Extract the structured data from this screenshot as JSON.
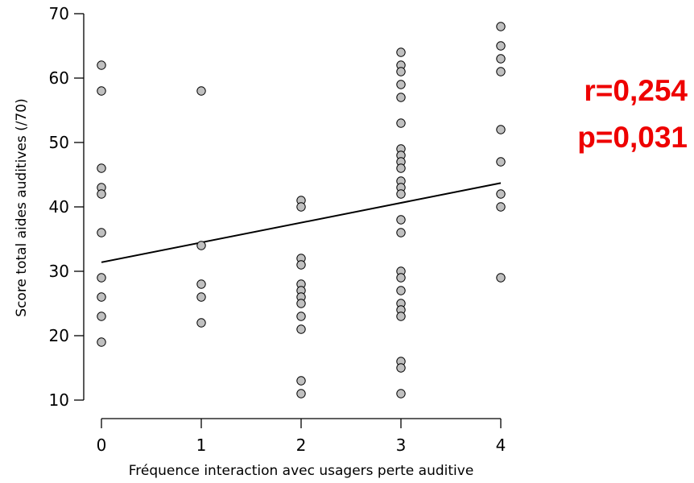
{
  "chart_data": {
    "type": "scatter",
    "xlabel": "Fréquence interaction avec usagers perte auditive",
    "ylabel": "Score total aides auditives (/70)",
    "xlim": [
      0,
      4
    ],
    "ylim": [
      10,
      70
    ],
    "x_ticks": [
      0,
      1,
      2,
      3,
      4
    ],
    "y_ticks": [
      10,
      20,
      30,
      40,
      50,
      60,
      70
    ],
    "grid": false,
    "points": [
      {
        "x": 0,
        "y": 62
      },
      {
        "x": 0,
        "y": 58
      },
      {
        "x": 0,
        "y": 46
      },
      {
        "x": 0,
        "y": 43
      },
      {
        "x": 0,
        "y": 42
      },
      {
        "x": 0,
        "y": 36
      },
      {
        "x": 0,
        "y": 29
      },
      {
        "x": 0,
        "y": 26
      },
      {
        "x": 0,
        "y": 23
      },
      {
        "x": 0,
        "y": 19
      },
      {
        "x": 1,
        "y": 58
      },
      {
        "x": 1,
        "y": 34
      },
      {
        "x": 1,
        "y": 28
      },
      {
        "x": 1,
        "y": 26
      },
      {
        "x": 1,
        "y": 22
      },
      {
        "x": 2,
        "y": 41
      },
      {
        "x": 2,
        "y": 40
      },
      {
        "x": 2,
        "y": 32
      },
      {
        "x": 2,
        "y": 31
      },
      {
        "x": 2,
        "y": 28
      },
      {
        "x": 2,
        "y": 27
      },
      {
        "x": 2,
        "y": 26
      },
      {
        "x": 2,
        "y": 25
      },
      {
        "x": 2,
        "y": 23
      },
      {
        "x": 2,
        "y": 21
      },
      {
        "x": 2,
        "y": 13
      },
      {
        "x": 2,
        "y": 11
      },
      {
        "x": 3,
        "y": 64
      },
      {
        "x": 3,
        "y": 62
      },
      {
        "x": 3,
        "y": 61
      },
      {
        "x": 3,
        "y": 59
      },
      {
        "x": 3,
        "y": 57
      },
      {
        "x": 3,
        "y": 53
      },
      {
        "x": 3,
        "y": 49
      },
      {
        "x": 3,
        "y": 48
      },
      {
        "x": 3,
        "y": 47
      },
      {
        "x": 3,
        "y": 46
      },
      {
        "x": 3,
        "y": 44
      },
      {
        "x": 3,
        "y": 43
      },
      {
        "x": 3,
        "y": 42
      },
      {
        "x": 3,
        "y": 38
      },
      {
        "x": 3,
        "y": 36
      },
      {
        "x": 3,
        "y": 30
      },
      {
        "x": 3,
        "y": 29
      },
      {
        "x": 3,
        "y": 27
      },
      {
        "x": 3,
        "y": 25
      },
      {
        "x": 3,
        "y": 24
      },
      {
        "x": 3,
        "y": 23
      },
      {
        "x": 3,
        "y": 16
      },
      {
        "x": 3,
        "y": 15
      },
      {
        "x": 3,
        "y": 11
      },
      {
        "x": 4,
        "y": 68
      },
      {
        "x": 4,
        "y": 65
      },
      {
        "x": 4,
        "y": 63
      },
      {
        "x": 4,
        "y": 61
      },
      {
        "x": 4,
        "y": 52
      },
      {
        "x": 4,
        "y": 47
      },
      {
        "x": 4,
        "y": 42
      },
      {
        "x": 4,
        "y": 40
      },
      {
        "x": 4,
        "y": 29
      }
    ],
    "regression_line": {
      "x": [
        0,
        4
      ],
      "y": [
        31.4,
        43.7
      ]
    },
    "point_fill": "#c0c0c0",
    "point_stroke": "#000000",
    "line_color": "#000000"
  },
  "annotations": {
    "r_text": "r=0,254",
    "p_text": "p=0,031",
    "color": "#ee0000"
  }
}
